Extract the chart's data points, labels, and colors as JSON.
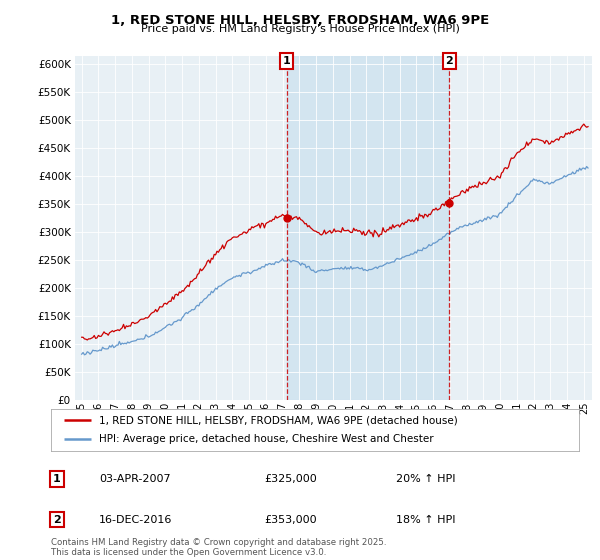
{
  "title": "1, RED STONE HILL, HELSBY, FRODSHAM, WA6 9PE",
  "subtitle": "Price paid vs. HM Land Registry's House Price Index (HPI)",
  "line1_label": "1, RED STONE HILL, HELSBY, FRODSHAM, WA6 9PE (detached house)",
  "line2_label": "HPI: Average price, detached house, Cheshire West and Chester",
  "line1_color": "#cc0000",
  "line2_color": "#6699cc",
  "vline_color": "#cc0000",
  "shade_color": "#d0e4f0",
  "annotation1": {
    "num": "1",
    "date": "03-APR-2007",
    "price": "£325,000",
    "change": "20% ↑ HPI"
  },
  "annotation2": {
    "num": "2",
    "date": "16-DEC-2016",
    "price": "£353,000",
    "change": "18% ↑ HPI"
  },
  "vline1_x": 2007.25,
  "vline2_x": 2016.96,
  "ylim": [
    0,
    615000
  ],
  "xlim": [
    1994.6,
    2025.5
  ],
  "yticks": [
    0,
    50000,
    100000,
    150000,
    200000,
    250000,
    300000,
    350000,
    400000,
    450000,
    500000,
    550000,
    600000
  ],
  "xtick_years": [
    1995,
    1996,
    1997,
    1998,
    1999,
    2000,
    2001,
    2002,
    2003,
    2004,
    2005,
    2006,
    2007,
    2008,
    2009,
    2010,
    2011,
    2012,
    2013,
    2014,
    2015,
    2016,
    2017,
    2018,
    2019,
    2020,
    2021,
    2022,
    2023,
    2024,
    2025
  ],
  "footer": "Contains HM Land Registry data © Crown copyright and database right 2025.\nThis data is licensed under the Open Government Licence v3.0.",
  "bg_color": "#e8f0f5",
  "price1": 325000,
  "price2": 353000
}
